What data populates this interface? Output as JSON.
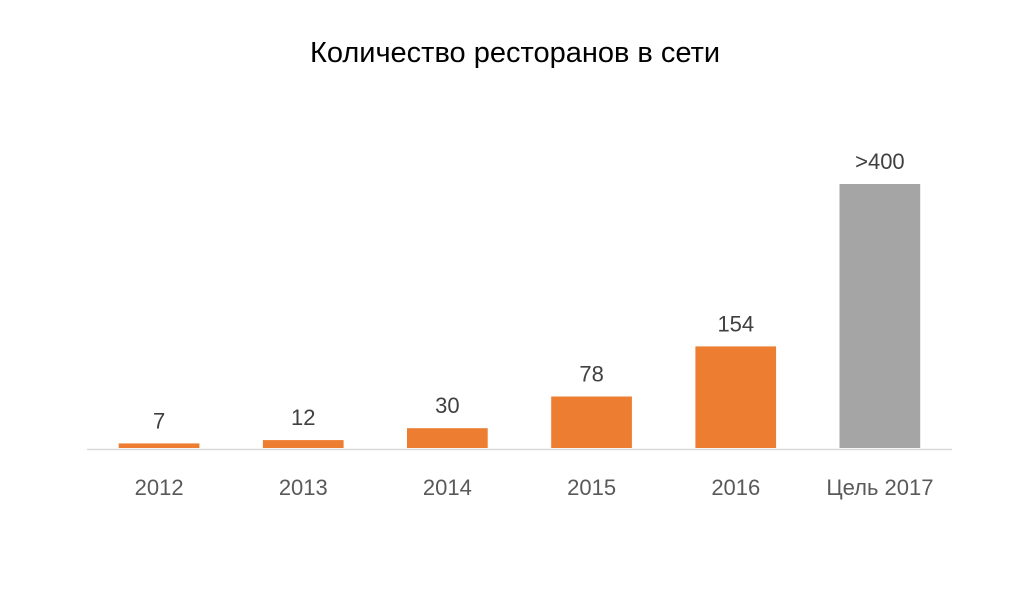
{
  "chart_data": {
    "type": "bar",
    "title": "Количество ресторанов в сети",
    "xlabel": "",
    "ylabel": "",
    "categories": [
      "2012",
      "2013",
      "2014",
      "2015",
      "2016",
      "Цель 2017"
    ],
    "values": [
      7,
      12,
      30,
      78,
      154,
      400
    ],
    "data_labels": [
      "7",
      "12",
      "30",
      "78",
      "154",
      ">400"
    ],
    "bar_colors": [
      "#ED7D31",
      "#ED7D31",
      "#ED7D31",
      "#ED7D31",
      "#ED7D31",
      "#A5A5A5"
    ],
    "ylim": [
      0,
      460
    ],
    "grid": false,
    "legend": "none"
  }
}
